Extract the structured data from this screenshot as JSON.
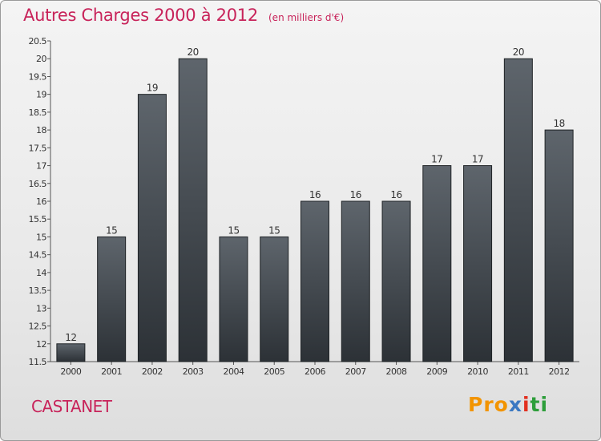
{
  "header": {
    "title": "Autres Charges 2000 à 2012",
    "unit_note": "(en milliers d'€)"
  },
  "footer": {
    "place": "CASTANET",
    "logo": [
      "Pro",
      "x",
      "i",
      "ti"
    ]
  },
  "colors": {
    "title": "#c8235a",
    "bar_top": "#5e656c",
    "bar_bottom": "#2c3136"
  },
  "chart_data": {
    "type": "bar",
    "title": "Autres Charges 2000 à 2012",
    "categories": [
      "2000",
      "2001",
      "2002",
      "2003",
      "2004",
      "2005",
      "2006",
      "2007",
      "2008",
      "2009",
      "2010",
      "2011",
      "2012"
    ],
    "values": [
      12,
      15,
      19,
      20,
      15,
      15,
      16,
      16,
      16,
      17,
      17,
      20,
      18
    ],
    "data_labels": [
      "12",
      "15",
      "19",
      "20",
      "15",
      "15",
      "16",
      "16",
      "16",
      "17",
      "17",
      "20",
      "18"
    ],
    "ylim": [
      11.5,
      20.5
    ],
    "yticks": [
      "11.5",
      "12",
      "12.5",
      "13",
      "13.5",
      "14",
      "14.5",
      "15",
      "15.5",
      "16",
      "16.5",
      "17",
      "17.5",
      "18",
      "18.5",
      "19",
      "19.5",
      "20",
      "20.5"
    ],
    "grid": false,
    "xlabel": "",
    "ylabel": ""
  }
}
